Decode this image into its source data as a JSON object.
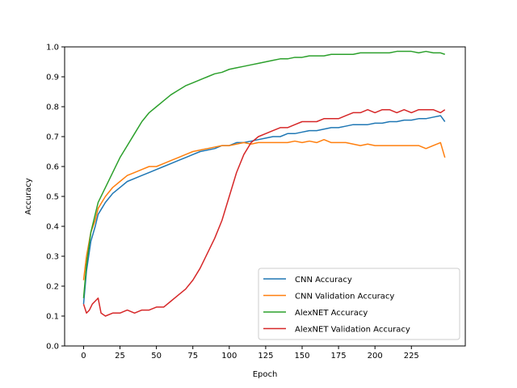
{
  "chart_data": {
    "type": "line",
    "title": "",
    "xlabel": "Epoch",
    "ylabel": "Accuracy",
    "xlim": [
      -13,
      262
    ],
    "ylim": [
      0.0,
      1.0
    ],
    "xticks": [
      0,
      25,
      50,
      75,
      100,
      125,
      150,
      175,
      200,
      225
    ],
    "yticks": [
      0.0,
      0.1,
      0.2,
      0.3,
      0.4,
      0.5,
      0.6,
      0.7,
      0.8,
      0.9,
      1.0
    ],
    "xtick_labels": [
      "0",
      "25",
      "50",
      "75",
      "100",
      "125",
      "150",
      "175",
      "200",
      "225"
    ],
    "ytick_labels": [
      "0.0",
      "0.1",
      "0.2",
      "0.3",
      "0.4",
      "0.5",
      "0.6",
      "0.7",
      "0.8",
      "0.9",
      "1.0"
    ],
    "grid": false,
    "legend_position": "lower-right",
    "series": [
      {
        "name": "CNN Accuracy",
        "color": "#1f77b4",
        "points": [
          [
            0,
            0.14
          ],
          [
            2,
            0.25
          ],
          [
            5,
            0.35
          ],
          [
            8,
            0.4
          ],
          [
            10,
            0.44
          ],
          [
            15,
            0.48
          ],
          [
            20,
            0.51
          ],
          [
            25,
            0.53
          ],
          [
            30,
            0.55
          ],
          [
            35,
            0.56
          ],
          [
            40,
            0.57
          ],
          [
            45,
            0.58
          ],
          [
            50,
            0.59
          ],
          [
            55,
            0.6
          ],
          [
            60,
            0.61
          ],
          [
            65,
            0.62
          ],
          [
            70,
            0.63
          ],
          [
            75,
            0.64
          ],
          [
            80,
            0.65
          ],
          [
            85,
            0.655
          ],
          [
            90,
            0.66
          ],
          [
            95,
            0.67
          ],
          [
            100,
            0.67
          ],
          [
            105,
            0.68
          ],
          [
            110,
            0.68
          ],
          [
            115,
            0.685
          ],
          [
            120,
            0.69
          ],
          [
            125,
            0.695
          ],
          [
            130,
            0.7
          ],
          [
            135,
            0.7
          ],
          [
            140,
            0.71
          ],
          [
            145,
            0.71
          ],
          [
            150,
            0.715
          ],
          [
            155,
            0.72
          ],
          [
            160,
            0.72
          ],
          [
            165,
            0.725
          ],
          [
            170,
            0.73
          ],
          [
            175,
            0.73
          ],
          [
            180,
            0.735
          ],
          [
            185,
            0.74
          ],
          [
            190,
            0.74
          ],
          [
            195,
            0.74
          ],
          [
            200,
            0.745
          ],
          [
            205,
            0.745
          ],
          [
            210,
            0.75
          ],
          [
            215,
            0.75
          ],
          [
            220,
            0.755
          ],
          [
            225,
            0.755
          ],
          [
            230,
            0.76
          ],
          [
            235,
            0.76
          ],
          [
            240,
            0.765
          ],
          [
            245,
            0.77
          ],
          [
            248,
            0.75
          ]
        ]
      },
      {
        "name": "CNN Validation Accuracy",
        "color": "#ff7f0e",
        "points": [
          [
            0,
            0.22
          ],
          [
            2,
            0.3
          ],
          [
            5,
            0.38
          ],
          [
            8,
            0.42
          ],
          [
            10,
            0.46
          ],
          [
            15,
            0.5
          ],
          [
            20,
            0.53
          ],
          [
            25,
            0.55
          ],
          [
            30,
            0.57
          ],
          [
            35,
            0.58
          ],
          [
            40,
            0.59
          ],
          [
            45,
            0.6
          ],
          [
            50,
            0.6
          ],
          [
            55,
            0.61
          ],
          [
            60,
            0.62
          ],
          [
            65,
            0.63
          ],
          [
            70,
            0.64
          ],
          [
            75,
            0.65
          ],
          [
            80,
            0.655
          ],
          [
            85,
            0.66
          ],
          [
            90,
            0.665
          ],
          [
            95,
            0.67
          ],
          [
            100,
            0.67
          ],
          [
            105,
            0.675
          ],
          [
            110,
            0.68
          ],
          [
            115,
            0.675
          ],
          [
            120,
            0.68
          ],
          [
            125,
            0.68
          ],
          [
            130,
            0.68
          ],
          [
            135,
            0.68
          ],
          [
            140,
            0.68
          ],
          [
            145,
            0.685
          ],
          [
            150,
            0.68
          ],
          [
            155,
            0.685
          ],
          [
            160,
            0.68
          ],
          [
            165,
            0.69
          ],
          [
            170,
            0.68
          ],
          [
            175,
            0.68
          ],
          [
            180,
            0.68
          ],
          [
            185,
            0.675
          ],
          [
            190,
            0.67
          ],
          [
            195,
            0.675
          ],
          [
            200,
            0.67
          ],
          [
            205,
            0.67
          ],
          [
            210,
            0.67
          ],
          [
            215,
            0.67
          ],
          [
            220,
            0.67
          ],
          [
            225,
            0.67
          ],
          [
            230,
            0.67
          ],
          [
            235,
            0.66
          ],
          [
            240,
            0.67
          ],
          [
            245,
            0.68
          ],
          [
            248,
            0.63
          ]
        ]
      },
      {
        "name": "AlexNET Accuracy",
        "color": "#2ca02c",
        "points": [
          [
            0,
            0.16
          ],
          [
            2,
            0.27
          ],
          [
            5,
            0.38
          ],
          [
            8,
            0.44
          ],
          [
            10,
            0.48
          ],
          [
            15,
            0.53
          ],
          [
            20,
            0.58
          ],
          [
            25,
            0.63
          ],
          [
            30,
            0.67
          ],
          [
            35,
            0.71
          ],
          [
            40,
            0.75
          ],
          [
            45,
            0.78
          ],
          [
            50,
            0.8
          ],
          [
            55,
            0.82
          ],
          [
            60,
            0.84
          ],
          [
            65,
            0.855
          ],
          [
            70,
            0.87
          ],
          [
            75,
            0.88
          ],
          [
            80,
            0.89
          ],
          [
            85,
            0.9
          ],
          [
            90,
            0.91
          ],
          [
            95,
            0.915
          ],
          [
            100,
            0.925
          ],
          [
            105,
            0.93
          ],
          [
            110,
            0.935
          ],
          [
            115,
            0.94
          ],
          [
            120,
            0.945
          ],
          [
            125,
            0.95
          ],
          [
            130,
            0.955
          ],
          [
            135,
            0.96
          ],
          [
            140,
            0.96
          ],
          [
            145,
            0.965
          ],
          [
            150,
            0.965
          ],
          [
            155,
            0.97
          ],
          [
            160,
            0.97
          ],
          [
            165,
            0.97
          ],
          [
            170,
            0.975
          ],
          [
            175,
            0.975
          ],
          [
            180,
            0.975
          ],
          [
            185,
            0.975
          ],
          [
            190,
            0.98
          ],
          [
            195,
            0.98
          ],
          [
            200,
            0.98
          ],
          [
            205,
            0.98
          ],
          [
            210,
            0.98
          ],
          [
            215,
            0.985
          ],
          [
            220,
            0.985
          ],
          [
            225,
            0.985
          ],
          [
            230,
            0.98
          ],
          [
            235,
            0.985
          ],
          [
            240,
            0.98
          ],
          [
            245,
            0.98
          ],
          [
            248,
            0.975
          ]
        ]
      },
      {
        "name": "AlexNET Validation Accuracy",
        "color": "#d62728",
        "points": [
          [
            0,
            0.14
          ],
          [
            2,
            0.11
          ],
          [
            4,
            0.12
          ],
          [
            6,
            0.14
          ],
          [
            8,
            0.15
          ],
          [
            10,
            0.16
          ],
          [
            12,
            0.11
          ],
          [
            15,
            0.1
          ],
          [
            20,
            0.11
          ],
          [
            25,
            0.11
          ],
          [
            30,
            0.12
          ],
          [
            35,
            0.11
          ],
          [
            40,
            0.12
          ],
          [
            45,
            0.12
          ],
          [
            50,
            0.13
          ],
          [
            55,
            0.13
          ],
          [
            60,
            0.15
          ],
          [
            65,
            0.17
          ],
          [
            70,
            0.19
          ],
          [
            75,
            0.22
          ],
          [
            80,
            0.26
          ],
          [
            85,
            0.31
          ],
          [
            90,
            0.36
          ],
          [
            95,
            0.42
          ],
          [
            100,
            0.5
          ],
          [
            105,
            0.58
          ],
          [
            110,
            0.64
          ],
          [
            115,
            0.68
          ],
          [
            120,
            0.7
          ],
          [
            125,
            0.71
          ],
          [
            130,
            0.72
          ],
          [
            135,
            0.73
          ],
          [
            140,
            0.73
          ],
          [
            145,
            0.74
          ],
          [
            150,
            0.75
          ],
          [
            155,
            0.75
          ],
          [
            160,
            0.75
          ],
          [
            165,
            0.76
          ],
          [
            170,
            0.76
          ],
          [
            175,
            0.76
          ],
          [
            180,
            0.77
          ],
          [
            185,
            0.78
          ],
          [
            190,
            0.78
          ],
          [
            195,
            0.79
          ],
          [
            200,
            0.78
          ],
          [
            205,
            0.79
          ],
          [
            210,
            0.79
          ],
          [
            215,
            0.78
          ],
          [
            220,
            0.79
          ],
          [
            225,
            0.78
          ],
          [
            230,
            0.79
          ],
          [
            235,
            0.79
          ],
          [
            240,
            0.79
          ],
          [
            245,
            0.78
          ],
          [
            248,
            0.79
          ]
        ]
      }
    ]
  }
}
